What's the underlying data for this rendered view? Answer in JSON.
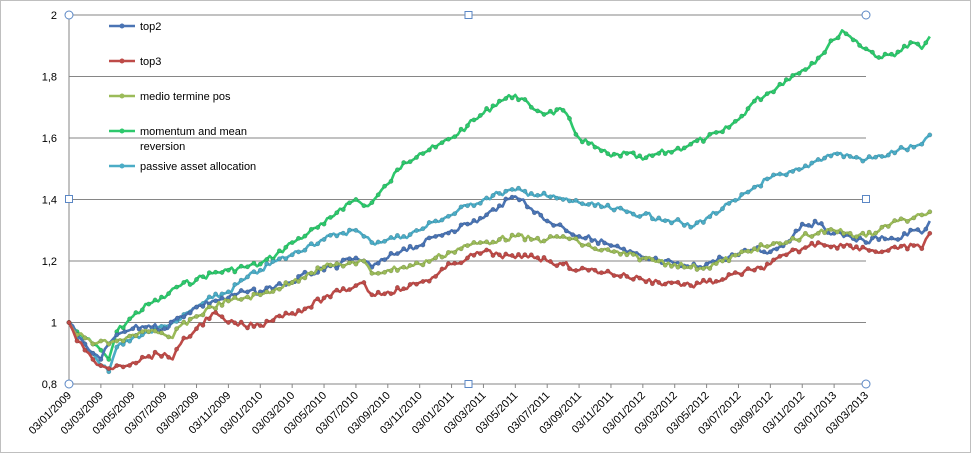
{
  "chart_data": {
    "type": "line",
    "title": "",
    "xlabel": "",
    "ylabel": "",
    "ylim": [
      0.8,
      2
    ],
    "xlim": [
      "03/01/2009",
      "03/03/2013"
    ],
    "yticks": [
      "0,8",
      "1",
      "1,2",
      "1,4",
      "1,6",
      "1,8",
      "2"
    ],
    "xticks": [
      "03/01/2009",
      "03/03/2009",
      "03/05/2009",
      "03/07/2009",
      "03/09/2009",
      "03/11/2009",
      "03/01/2010",
      "03/03/2010",
      "03/05/2010",
      "03/07/2010",
      "03/09/2010",
      "03/11/2010",
      "03/01/2011",
      "03/03/2011",
      "03/05/2011",
      "03/07/2011",
      "03/09/2011",
      "03/11/2011",
      "03/01/2012",
      "03/03/2012",
      "03/05/2012",
      "03/07/2012",
      "03/09/2012",
      "03/11/2012",
      "03/01/2013",
      "03/03/2013"
    ],
    "grid": true,
    "legend": "top-left, inside plot area",
    "x_unit": "month index (0 = 03/01/2009, 50 = 03/03/2013)",
    "series": [
      {
        "name": "top2",
        "color": "#4a74b4",
        "points": [
          [
            0,
            1.0
          ],
          [
            0.5,
            0.96
          ],
          [
            1,
            0.93
          ],
          [
            1.5,
            0.9
          ],
          [
            2,
            0.88
          ],
          [
            2.5,
            0.93
          ],
          [
            3,
            0.96
          ],
          [
            3.5,
            0.97
          ],
          [
            4,
            0.98
          ],
          [
            5,
            0.99
          ],
          [
            6,
            0.98
          ],
          [
            7,
            1.02
          ],
          [
            8,
            1.05
          ],
          [
            9,
            1.07
          ],
          [
            10,
            1.08
          ],
          [
            11,
            1.1
          ],
          [
            12,
            1.1
          ],
          [
            13,
            1.12
          ],
          [
            14,
            1.13
          ],
          [
            15,
            1.16
          ],
          [
            16,
            1.17
          ],
          [
            17,
            1.19
          ],
          [
            18,
            1.21
          ],
          [
            18.5,
            1.2
          ],
          [
            19,
            1.18
          ],
          [
            20,
            1.21
          ],
          [
            21,
            1.24
          ],
          [
            22,
            1.25
          ],
          [
            23,
            1.28
          ],
          [
            24,
            1.3
          ],
          [
            25,
            1.32
          ],
          [
            26,
            1.34
          ],
          [
            27,
            1.38
          ],
          [
            28,
            1.41
          ],
          [
            28.5,
            1.4
          ],
          [
            29,
            1.37
          ],
          [
            30,
            1.33
          ],
          [
            31,
            1.31
          ],
          [
            32,
            1.28
          ],
          [
            33,
            1.27
          ],
          [
            34,
            1.25
          ],
          [
            35,
            1.23
          ],
          [
            36,
            1.21
          ],
          [
            37,
            1.2
          ],
          [
            38,
            1.19
          ],
          [
            39,
            1.18
          ],
          [
            40,
            1.19
          ],
          [
            41,
            1.21
          ],
          [
            42,
            1.22
          ],
          [
            43,
            1.24
          ],
          [
            44,
            1.23
          ],
          [
            45,
            1.26
          ],
          [
            46,
            1.32
          ],
          [
            47,
            1.32
          ],
          [
            48,
            1.29
          ],
          [
            49,
            1.28
          ],
          [
            50,
            1.26
          ],
          [
            51,
            1.28
          ],
          [
            52,
            1.27
          ],
          [
            53,
            1.3
          ],
          [
            53.5,
            1.29
          ],
          [
            54,
            1.33
          ]
        ]
      },
      {
        "name": "top3",
        "color": "#be4b48",
        "points": [
          [
            0,
            1.0
          ],
          [
            0.5,
            0.94
          ],
          [
            1,
            0.91
          ],
          [
            1.5,
            0.88
          ],
          [
            2,
            0.86
          ],
          [
            2.5,
            0.85
          ],
          [
            3,
            0.86
          ],
          [
            4,
            0.87
          ],
          [
            5,
            0.89
          ],
          [
            6,
            0.9
          ],
          [
            6.5,
            0.88
          ],
          [
            7,
            0.93
          ],
          [
            8,
            0.98
          ],
          [
            9,
            1.03
          ],
          [
            10,
            1.0
          ],
          [
            11,
            0.99
          ],
          [
            12,
            0.99
          ],
          [
            13,
            1.02
          ],
          [
            14,
            1.03
          ],
          [
            15,
            1.05
          ],
          [
            16,
            1.08
          ],
          [
            17,
            1.1
          ],
          [
            18,
            1.12
          ],
          [
            18.5,
            1.13
          ],
          [
            19,
            1.09
          ],
          [
            20,
            1.1
          ],
          [
            21,
            1.11
          ],
          [
            22,
            1.13
          ],
          [
            23,
            1.15
          ],
          [
            24,
            1.19
          ],
          [
            25,
            1.21
          ],
          [
            26,
            1.23
          ],
          [
            27,
            1.22
          ],
          [
            28,
            1.21
          ],
          [
            29,
            1.22
          ],
          [
            30,
            1.2
          ],
          [
            31,
            1.19
          ],
          [
            32,
            1.17
          ],
          [
            33,
            1.17
          ],
          [
            34,
            1.16
          ],
          [
            35,
            1.15
          ],
          [
            36,
            1.14
          ],
          [
            37,
            1.13
          ],
          [
            38,
            1.13
          ],
          [
            39,
            1.12
          ],
          [
            40,
            1.13
          ],
          [
            41,
            1.14
          ],
          [
            42,
            1.16
          ],
          [
            43,
            1.17
          ],
          [
            44,
            1.19
          ],
          [
            45,
            1.22
          ],
          [
            46,
            1.24
          ],
          [
            47,
            1.26
          ],
          [
            48,
            1.25
          ],
          [
            49,
            1.25
          ],
          [
            50,
            1.24
          ],
          [
            51,
            1.23
          ],
          [
            52,
            1.24
          ],
          [
            53,
            1.25
          ],
          [
            53.5,
            1.24
          ],
          [
            54,
            1.29
          ]
        ]
      },
      {
        "name": "medio termine pos",
        "color": "#9bbb59",
        "points": [
          [
            0,
            1.0
          ],
          [
            0.5,
            0.96
          ],
          [
            1,
            0.95
          ],
          [
            1.5,
            0.93
          ],
          [
            2,
            0.94
          ],
          [
            2.5,
            0.93
          ],
          [
            3,
            0.94
          ],
          [
            4,
            0.96
          ],
          [
            5,
            0.97
          ],
          [
            6,
            0.96
          ],
          [
            6.5,
            0.95
          ],
          [
            7,
            0.99
          ],
          [
            8,
            1.02
          ],
          [
            9,
            1.05
          ],
          [
            10,
            1.07
          ],
          [
            11,
            1.08
          ],
          [
            12,
            1.09
          ],
          [
            13,
            1.11
          ],
          [
            14,
            1.13
          ],
          [
            15,
            1.16
          ],
          [
            16,
            1.18
          ],
          [
            17,
            1.19
          ],
          [
            18,
            1.19
          ],
          [
            18.5,
            1.2
          ],
          [
            19,
            1.16
          ],
          [
            20,
            1.17
          ],
          [
            21,
            1.18
          ],
          [
            22,
            1.19
          ],
          [
            23,
            1.21
          ],
          [
            24,
            1.23
          ],
          [
            25,
            1.25
          ],
          [
            26,
            1.26
          ],
          [
            27,
            1.27
          ],
          [
            28,
            1.28
          ],
          [
            29,
            1.27
          ],
          [
            30,
            1.27
          ],
          [
            31,
            1.28
          ],
          [
            32,
            1.26
          ],
          [
            33,
            1.24
          ],
          [
            34,
            1.23
          ],
          [
            35,
            1.22
          ],
          [
            36,
            1.21
          ],
          [
            37,
            1.2
          ],
          [
            38,
            1.19
          ],
          [
            39,
            1.18
          ],
          [
            40,
            1.18
          ],
          [
            41,
            1.2
          ],
          [
            42,
            1.22
          ],
          [
            43,
            1.24
          ],
          [
            44,
            1.25
          ],
          [
            45,
            1.26
          ],
          [
            46,
            1.28
          ],
          [
            47,
            1.29
          ],
          [
            48,
            1.3
          ],
          [
            49,
            1.29
          ],
          [
            50,
            1.28
          ],
          [
            51,
            1.31
          ],
          [
            52,
            1.33
          ],
          [
            53,
            1.34
          ],
          [
            53.5,
            1.35
          ],
          [
            54,
            1.36
          ]
        ]
      },
      {
        "name": "momentum and mean reversion",
        "color": "#2dc86c",
        "points": [
          [
            0,
            1.0
          ],
          [
            0.5,
            0.97
          ],
          [
            1,
            0.95
          ],
          [
            1.5,
            0.93
          ],
          [
            2,
            0.91
          ],
          [
            2.5,
            0.88
          ],
          [
            3,
            0.97
          ],
          [
            4,
            1.02
          ],
          [
            5,
            1.06
          ],
          [
            6,
            1.08
          ],
          [
            6.5,
            1.11
          ],
          [
            7,
            1.12
          ],
          [
            8,
            1.14
          ],
          [
            9,
            1.16
          ],
          [
            10,
            1.17
          ],
          [
            11,
            1.18
          ],
          [
            12,
            1.19
          ],
          [
            13,
            1.22
          ],
          [
            14,
            1.26
          ],
          [
            15,
            1.29
          ],
          [
            16,
            1.32
          ],
          [
            17,
            1.37
          ],
          [
            18,
            1.4
          ],
          [
            18.5,
            1.38
          ],
          [
            19,
            1.39
          ],
          [
            20,
            1.45
          ],
          [
            21,
            1.52
          ],
          [
            22,
            1.55
          ],
          [
            23,
            1.57
          ],
          [
            24,
            1.6
          ],
          [
            25,
            1.64
          ],
          [
            26,
            1.68
          ],
          [
            27,
            1.72
          ],
          [
            28,
            1.74
          ],
          [
            29,
            1.7
          ],
          [
            30,
            1.68
          ],
          [
            31,
            1.69
          ],
          [
            32,
            1.6
          ],
          [
            33,
            1.57
          ],
          [
            34,
            1.54
          ],
          [
            35,
            1.55
          ],
          [
            36,
            1.53
          ],
          [
            37,
            1.55
          ],
          [
            38,
            1.56
          ],
          [
            39,
            1.58
          ],
          [
            40,
            1.6
          ],
          [
            41,
            1.62
          ],
          [
            42,
            1.66
          ],
          [
            43,
            1.72
          ],
          [
            44,
            1.75
          ],
          [
            45,
            1.79
          ],
          [
            46,
            1.82
          ],
          [
            47,
            1.86
          ],
          [
            48,
            1.92
          ],
          [
            48.5,
            1.95
          ],
          [
            49,
            1.93
          ],
          [
            50,
            1.89
          ],
          [
            51,
            1.86
          ],
          [
            52,
            1.88
          ],
          [
            53,
            1.91
          ],
          [
            53.5,
            1.89
          ],
          [
            54,
            1.93
          ]
        ]
      },
      {
        "name": "passive asset allocation",
        "color": "#4bacc6",
        "points": [
          [
            0,
            1.0
          ],
          [
            0.5,
            0.95
          ],
          [
            1,
            0.93
          ],
          [
            1.5,
            0.9
          ],
          [
            2,
            0.86
          ],
          [
            2.5,
            0.84
          ],
          [
            3,
            0.92
          ],
          [
            4,
            0.95
          ],
          [
            5,
            0.97
          ],
          [
            6,
            0.99
          ],
          [
            6.5,
            1.0
          ],
          [
            7,
            1.01
          ],
          [
            8,
            1.05
          ],
          [
            9,
            1.08
          ],
          [
            10,
            1.1
          ],
          [
            11,
            1.14
          ],
          [
            12,
            1.17
          ],
          [
            13,
            1.2
          ],
          [
            14,
            1.22
          ],
          [
            15,
            1.25
          ],
          [
            16,
            1.27
          ],
          [
            17,
            1.29
          ],
          [
            18,
            1.3
          ],
          [
            18.5,
            1.28
          ],
          [
            19,
            1.26
          ],
          [
            20,
            1.27
          ],
          [
            21,
            1.28
          ],
          [
            22,
            1.3
          ],
          [
            23,
            1.33
          ],
          [
            24,
            1.35
          ],
          [
            25,
            1.38
          ],
          [
            26,
            1.4
          ],
          [
            27,
            1.42
          ],
          [
            28,
            1.43
          ],
          [
            29,
            1.42
          ],
          [
            30,
            1.41
          ],
          [
            31,
            1.4
          ],
          [
            32,
            1.39
          ],
          [
            33,
            1.38
          ],
          [
            34,
            1.37
          ],
          [
            35,
            1.36
          ],
          [
            36,
            1.35
          ],
          [
            37,
            1.34
          ],
          [
            38,
            1.33
          ],
          [
            39,
            1.31
          ],
          [
            40,
            1.34
          ],
          [
            41,
            1.37
          ],
          [
            42,
            1.4
          ],
          [
            43,
            1.44
          ],
          [
            44,
            1.47
          ],
          [
            45,
            1.48
          ],
          [
            46,
            1.5
          ],
          [
            47,
            1.53
          ],
          [
            48,
            1.55
          ],
          [
            49,
            1.54
          ],
          [
            50,
            1.53
          ],
          [
            51,
            1.54
          ],
          [
            52,
            1.56
          ],
          [
            53,
            1.57
          ],
          [
            53.5,
            1.58
          ],
          [
            54,
            1.61
          ]
        ]
      }
    ]
  }
}
